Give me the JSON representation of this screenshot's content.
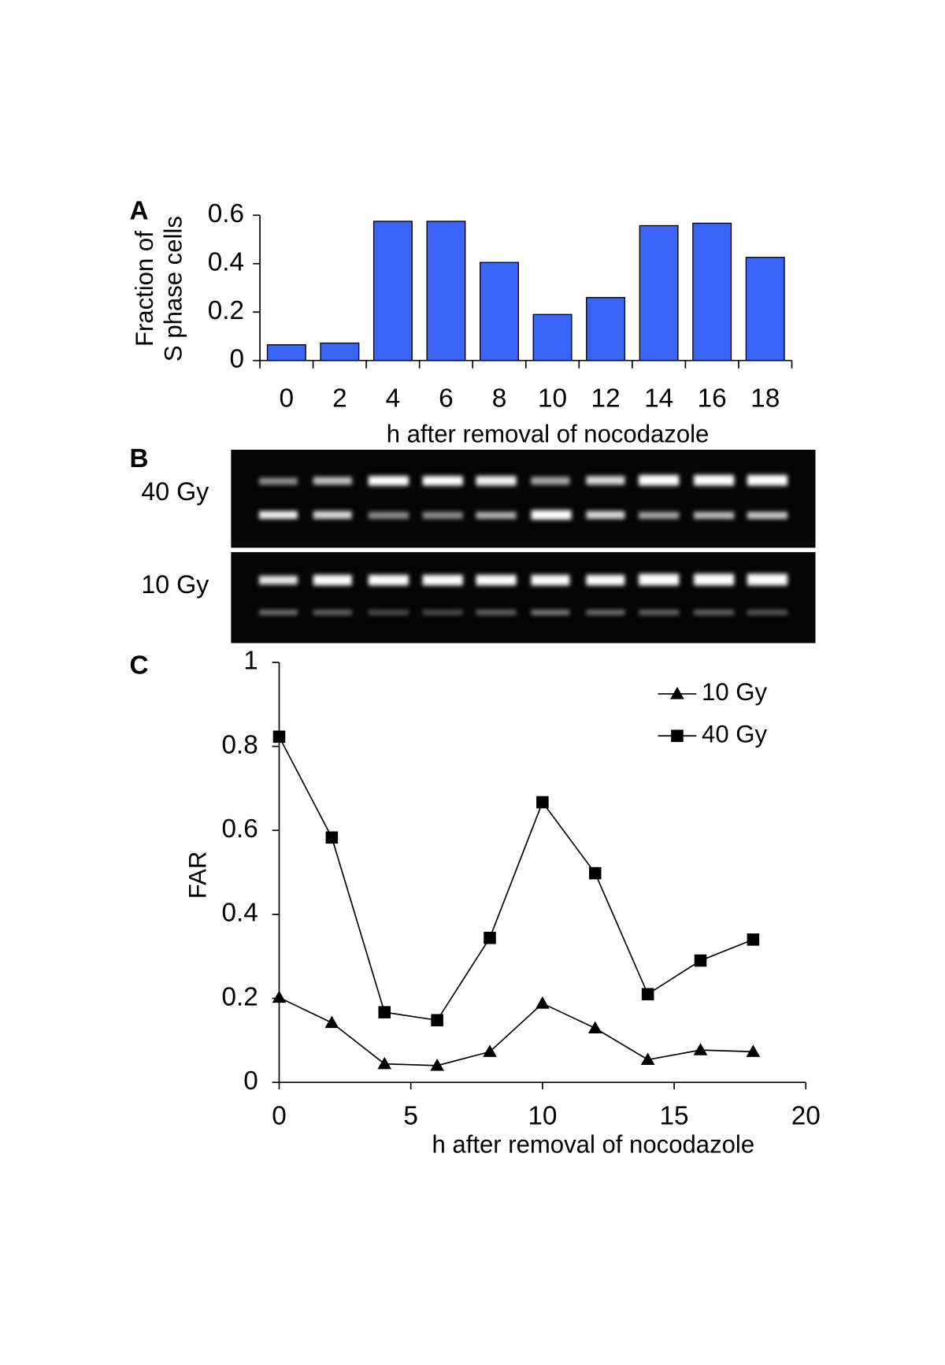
{
  "chart_data": [
    {
      "type": "bar",
      "panel": "A",
      "categories": [
        "0",
        "2",
        "4",
        "6",
        "8",
        "10",
        "12",
        "14",
        "16",
        "18"
      ],
      "values": [
        0.065,
        0.072,
        0.575,
        0.575,
        0.405,
        0.19,
        0.26,
        0.557,
        0.567,
        0.426
      ],
      "color": "#3a64f5",
      "xlabel": "h after removal of nocodazole",
      "ylabel": [
        "Fraction of",
        "S phase cells"
      ],
      "ylim": [
        0,
        0.6
      ],
      "yticks": [
        0,
        0.2,
        0.4,
        0.6
      ],
      "grid": false
    },
    {
      "type": "line",
      "panel": "C",
      "x": [
        0,
        2,
        4,
        6,
        8,
        10,
        12,
        14,
        16,
        18
      ],
      "series": [
        {
          "name": "10 Gy",
          "color": "#000000",
          "marker": "triangle",
          "values": [
            0.202,
            0.142,
            0.044,
            0.04,
            0.073,
            0.188,
            0.129,
            0.054,
            0.077,
            0.073
          ]
        },
        {
          "name": "40 Gy",
          "color": "#000000",
          "marker": "square",
          "values": [
            0.823,
            0.583,
            0.167,
            0.148,
            0.344,
            0.667,
            0.498,
            0.21,
            0.29,
            0.34
          ]
        }
      ],
      "xlabel": "h after removal of nocodazole",
      "ylabel": "FAR",
      "xlim": [
        0,
        20
      ],
      "xticks": [
        0,
        5,
        10,
        15,
        20
      ],
      "ylim": [
        0,
        1
      ],
      "yticks": [
        0,
        0.2,
        0.4,
        0.6,
        0.8,
        1
      ],
      "legend": "upper right",
      "grid": false
    }
  ],
  "gel": {
    "panel": "B",
    "rows": [
      "40 Gy",
      "10 Gy"
    ]
  }
}
